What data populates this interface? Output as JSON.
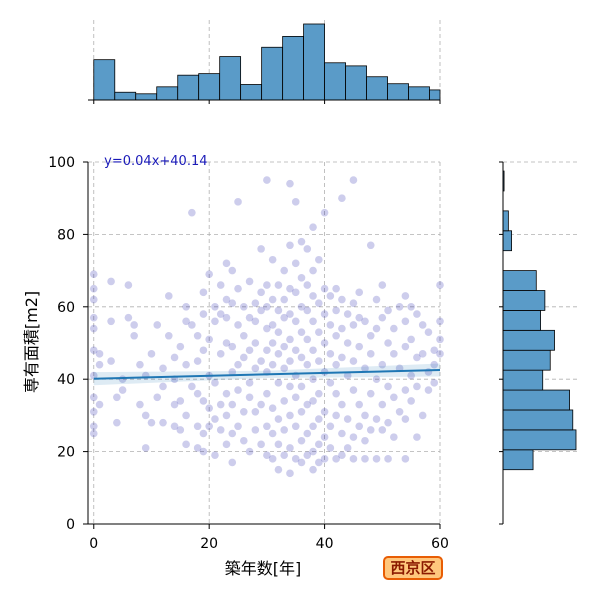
{
  "chart_data": {
    "type": "scatter",
    "subtype": "jointplot",
    "xlabel": "築年数[年]",
    "ylabel": "専有面積[m2]",
    "xlim": [
      -1,
      60
    ],
    "ylim": [
      0,
      100
    ],
    "xticks": [
      0,
      20,
      40,
      60
    ],
    "yticks": [
      0,
      20,
      40,
      60,
      80,
      100
    ],
    "grid": true,
    "regression": {
      "slope": 0.04,
      "intercept": 40.14,
      "label": "y=0.04x+40.14"
    },
    "badge": "西京区",
    "colors": {
      "points": "#1a1aa8",
      "regression_line": "#1f77b4",
      "hist_fill": "#5a9bc8",
      "badge_border": "#e85d04",
      "badge_fill": "#ffc77d"
    },
    "x_histogram": {
      "bin_edges": [
        0,
        3.64,
        7.27,
        10.91,
        14.55,
        18.18,
        21.82,
        25.45,
        29.09,
        32.73,
        36.36,
        40,
        43.64,
        47.27,
        50.91,
        54.55,
        58.18,
        61.82
      ],
      "counts": [
        52,
        10,
        8,
        17,
        32,
        34,
        56,
        20,
        68,
        82,
        98,
        48,
        44,
        30,
        21,
        17,
        13
      ]
    },
    "y_histogram": {
      "bin_edges": [
        15,
        20.5,
        26,
        31.5,
        37,
        42.5,
        48,
        53.5,
        59,
        64.5,
        70,
        75.5,
        81,
        86.5,
        92,
        97.5
      ],
      "counts": [
        28,
        68,
        65,
        62,
        37,
        44,
        48,
        35,
        39,
        31,
        0,
        8,
        5,
        0,
        1,
        4
      ]
    },
    "points": [
      [
        0,
        69
      ],
      [
        0,
        65
      ],
      [
        0,
        62
      ],
      [
        0,
        57
      ],
      [
        0,
        54
      ],
      [
        0,
        48
      ],
      [
        0,
        41
      ],
      [
        0,
        35
      ],
      [
        0,
        31
      ],
      [
        0,
        27
      ],
      [
        0,
        25
      ],
      [
        1,
        47
      ],
      [
        1,
        44
      ],
      [
        1,
        33
      ],
      [
        3,
        45
      ],
      [
        3,
        56
      ],
      [
        3,
        67
      ],
      [
        4,
        35
      ],
      [
        4,
        28
      ],
      [
        5,
        40
      ],
      [
        5,
        37
      ],
      [
        6,
        57
      ],
      [
        6,
        66
      ],
      [
        7,
        52
      ],
      [
        7,
        55
      ],
      [
        8,
        44
      ],
      [
        8,
        33
      ],
      [
        9,
        41
      ],
      [
        9,
        30
      ],
      [
        9,
        21
      ],
      [
        10,
        28
      ],
      [
        10,
        47
      ],
      [
        11,
        35
      ],
      [
        11,
        55
      ],
      [
        12,
        43
      ],
      [
        12,
        38
      ],
      [
        12,
        28
      ],
      [
        13,
        63
      ],
      [
        13,
        52
      ],
      [
        14,
        46
      ],
      [
        14,
        40
      ],
      [
        14,
        33
      ],
      [
        14,
        27
      ],
      [
        15,
        49
      ],
      [
        15,
        34
      ],
      [
        15,
        26
      ],
      [
        16,
        60
      ],
      [
        16,
        56
      ],
      [
        16,
        44
      ],
      [
        16,
        30
      ],
      [
        16,
        22
      ],
      [
        17,
        86
      ],
      [
        17,
        55
      ],
      [
        17,
        38
      ],
      [
        18,
        52
      ],
      [
        18,
        45
      ],
      [
        18,
        36
      ],
      [
        18,
        27
      ],
      [
        18,
        21
      ],
      [
        19,
        64
      ],
      [
        19,
        58
      ],
      [
        19,
        48
      ],
      [
        19,
        34
      ],
      [
        19,
        25
      ],
      [
        19,
        20
      ],
      [
        20,
        69
      ],
      [
        20,
        51
      ],
      [
        20,
        41
      ],
      [
        20,
        32
      ],
      [
        20,
        27
      ],
      [
        21,
        60
      ],
      [
        21,
        56
      ],
      [
        21,
        39
      ],
      [
        21,
        29
      ],
      [
        21,
        19
      ],
      [
        22,
        66
      ],
      [
        22,
        58
      ],
      [
        22,
        47
      ],
      [
        22,
        33
      ],
      [
        22,
        26
      ],
      [
        23,
        72
      ],
      [
        23,
        62
      ],
      [
        23,
        57
      ],
      [
        23,
        50
      ],
      [
        23,
        36
      ],
      [
        23,
        30
      ],
      [
        23,
        22
      ],
      [
        24,
        70
      ],
      [
        24,
        61
      ],
      [
        24,
        49
      ],
      [
        24,
        42
      ],
      [
        24,
        33
      ],
      [
        24,
        25
      ],
      [
        24,
        17
      ],
      [
        25,
        89
      ],
      [
        25,
        65
      ],
      [
        25,
        55
      ],
      [
        25,
        44
      ],
      [
        25,
        37
      ],
      [
        25,
        27
      ],
      [
        26,
        60
      ],
      [
        26,
        52
      ],
      [
        26,
        46
      ],
      [
        26,
        31
      ],
      [
        26,
        23
      ],
      [
        27,
        67
      ],
      [
        27,
        57
      ],
      [
        27,
        48
      ],
      [
        27,
        39
      ],
      [
        27,
        35
      ],
      [
        27,
        20
      ],
      [
        28,
        61
      ],
      [
        28,
        56
      ],
      [
        28,
        50
      ],
      [
        28,
        43
      ],
      [
        28,
        31
      ],
      [
        28,
        26
      ],
      [
        29,
        76
      ],
      [
        29,
        64
      ],
      [
        29,
        59
      ],
      [
        29,
        45
      ],
      [
        29,
        33
      ],
      [
        29,
        22
      ],
      [
        30,
        95
      ],
      [
        30,
        66
      ],
      [
        30,
        60
      ],
      [
        30,
        54
      ],
      [
        30,
        48
      ],
      [
        30,
        42
      ],
      [
        30,
        36
      ],
      [
        30,
        27
      ],
      [
        30,
        19
      ],
      [
        31,
        73
      ],
      [
        31,
        62
      ],
      [
        31,
        55
      ],
      [
        31,
        50
      ],
      [
        31,
        44
      ],
      [
        31,
        32
      ],
      [
        31,
        25
      ],
      [
        31,
        18
      ],
      [
        32,
        66
      ],
      [
        32,
        59
      ],
      [
        32,
        53
      ],
      [
        32,
        47
      ],
      [
        32,
        39
      ],
      [
        32,
        29
      ],
      [
        32,
        22
      ],
      [
        32,
        15
      ],
      [
        33,
        70
      ],
      [
        33,
        62
      ],
      [
        33,
        57
      ],
      [
        33,
        49
      ],
      [
        33,
        43
      ],
      [
        33,
        34
      ],
      [
        33,
        26
      ],
      [
        33,
        19
      ],
      [
        34,
        94
      ],
      [
        34,
        77
      ],
      [
        34,
        65
      ],
      [
        34,
        58
      ],
      [
        34,
        51
      ],
      [
        34,
        45
      ],
      [
        34,
        38
      ],
      [
        34,
        30
      ],
      [
        34,
        21
      ],
      [
        34,
        14
      ],
      [
        35,
        89
      ],
      [
        35,
        72
      ],
      [
        35,
        64
      ],
      [
        35,
        56
      ],
      [
        35,
        48
      ],
      [
        35,
        41
      ],
      [
        35,
        35
      ],
      [
        35,
        27
      ],
      [
        35,
        18
      ],
      [
        36,
        78
      ],
      [
        36,
        68
      ],
      [
        36,
        60
      ],
      [
        36,
        53
      ],
      [
        36,
        46
      ],
      [
        36,
        38
      ],
      [
        36,
        31
      ],
      [
        36,
        23
      ],
      [
        36,
        17
      ],
      [
        37,
        76
      ],
      [
        37,
        66
      ],
      [
        37,
        59
      ],
      [
        37,
        51
      ],
      [
        37,
        44
      ],
      [
        37,
        33
      ],
      [
        37,
        25
      ],
      [
        37,
        19
      ],
      [
        38,
        82
      ],
      [
        38,
        70
      ],
      [
        38,
        63
      ],
      [
        38,
        56
      ],
      [
        38,
        48
      ],
      [
        38,
        40
      ],
      [
        38,
        34
      ],
      [
        38,
        27
      ],
      [
        38,
        20
      ],
      [
        38,
        15
      ],
      [
        39,
        73
      ],
      [
        39,
        61
      ],
      [
        39,
        53
      ],
      [
        39,
        45
      ],
      [
        39,
        36
      ],
      [
        39,
        29
      ],
      [
        39,
        22
      ],
      [
        39,
        17
      ],
      [
        40,
        86
      ],
      [
        40,
        65
      ],
      [
        40,
        58
      ],
      [
        40,
        50
      ],
      [
        40,
        42
      ],
      [
        40,
        31
      ],
      [
        40,
        24
      ],
      [
        40,
        18
      ],
      [
        41,
        63
      ],
      [
        41,
        55
      ],
      [
        41,
        47
      ],
      [
        41,
        39
      ],
      [
        41,
        27
      ],
      [
        41,
        21
      ],
      [
        42,
        65
      ],
      [
        42,
        59
      ],
      [
        42,
        52
      ],
      [
        42,
        44
      ],
      [
        42,
        36
      ],
      [
        42,
        30
      ],
      [
        42,
        18
      ],
      [
        43,
        90
      ],
      [
        43,
        62
      ],
      [
        43,
        54
      ],
      [
        43,
        46
      ],
      [
        43,
        33
      ],
      [
        43,
        25
      ],
      [
        43,
        19
      ],
      [
        44,
        58
      ],
      [
        44,
        50
      ],
      [
        44,
        41
      ],
      [
        44,
        29
      ],
      [
        44,
        21
      ],
      [
        45,
        95
      ],
      [
        45,
        61
      ],
      [
        45,
        55
      ],
      [
        45,
        45
      ],
      [
        45,
        37
      ],
      [
        45,
        24
      ],
      [
        45,
        18
      ],
      [
        46,
        64
      ],
      [
        46,
        57
      ],
      [
        46,
        49
      ],
      [
        46,
        33
      ],
      [
        46,
        27
      ],
      [
        47,
        56
      ],
      [
        47,
        43
      ],
      [
        47,
        30
      ],
      [
        47,
        23
      ],
      [
        47,
        18
      ],
      [
        48,
        77
      ],
      [
        48,
        52
      ],
      [
        48,
        47
      ],
      [
        48,
        36
      ],
      [
        48,
        26
      ],
      [
        49,
        62
      ],
      [
        49,
        54
      ],
      [
        49,
        40
      ],
      [
        49,
        29
      ],
      [
        49,
        18
      ],
      [
        50,
        66
      ],
      [
        50,
        57
      ],
      [
        50,
        44
      ],
      [
        50,
        33
      ],
      [
        50,
        26
      ],
      [
        51,
        59
      ],
      [
        51,
        50
      ],
      [
        51,
        38
      ],
      [
        51,
        28
      ],
      [
        51,
        18
      ],
      [
        52,
        54
      ],
      [
        52,
        47
      ],
      [
        52,
        35
      ],
      [
        52,
        24
      ],
      [
        53,
        60
      ],
      [
        53,
        43
      ],
      [
        53,
        31
      ],
      [
        54,
        63
      ],
      [
        54,
        56
      ],
      [
        54,
        49
      ],
      [
        54,
        37
      ],
      [
        54,
        29
      ],
      [
        54,
        18
      ],
      [
        55,
        60
      ],
      [
        55,
        51
      ],
      [
        55,
        41
      ],
      [
        55,
        34
      ],
      [
        56,
        58
      ],
      [
        56,
        46
      ],
      [
        56,
        38
      ],
      [
        56,
        24
      ],
      [
        57,
        55
      ],
      [
        57,
        47
      ],
      [
        57,
        30
      ],
      [
        58,
        53
      ],
      [
        58,
        42
      ],
      [
        58,
        37
      ],
      [
        59,
        48
      ],
      [
        59,
        44
      ],
      [
        59,
        39
      ],
      [
        60,
        66
      ],
      [
        60,
        56
      ],
      [
        60,
        51
      ],
      [
        60,
        47
      ]
    ]
  }
}
